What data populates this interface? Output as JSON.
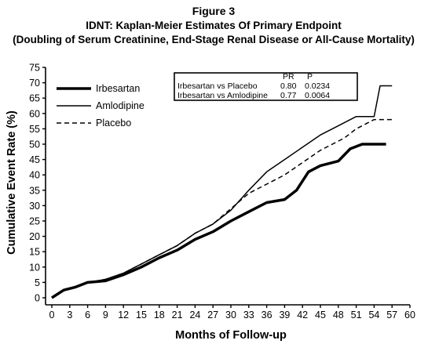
{
  "figure_label": "Figure 3",
  "chart_data": {
    "type": "line",
    "title": "IDNT: Kaplan-Meier Estimates Of Primary Endpoint",
    "subtitle": "(Doubling of Serum Creatinine, End-Stage Renal Disease or All-Cause Mortality)",
    "xlabel": "Months of Follow-up",
    "ylabel": "Cumulative Event Rate (%)",
    "xlim": [
      0,
      60
    ],
    "ylim": [
      0,
      75
    ],
    "x_ticks": [
      0,
      3,
      6,
      9,
      12,
      15,
      18,
      21,
      24,
      27,
      30,
      33,
      36,
      39,
      42,
      45,
      48,
      51,
      54,
      57,
      60
    ],
    "y_ticks": [
      0,
      5,
      10,
      15,
      20,
      25,
      30,
      35,
      40,
      45,
      50,
      55,
      60,
      65,
      70,
      75
    ],
    "x_tick_labels": [
      "0",
      "3",
      "6",
      "9",
      "12",
      "15",
      "18",
      "21",
      "24",
      "27",
      "30",
      "33",
      "36",
      "39",
      "42",
      "45",
      "48",
      "51",
      "54",
      "57",
      "60"
    ],
    "y_tick_labels": [
      "0",
      "5",
      "10",
      "15",
      "20",
      "25",
      "30",
      "35",
      "40",
      "45",
      "50",
      "55",
      "60",
      "65",
      "70",
      "75"
    ],
    "grid": false,
    "legend_position": "top-left",
    "series": [
      {
        "name": "Irbesartan",
        "style": "thick",
        "points": [
          [
            0,
            0
          ],
          [
            2,
            2.5
          ],
          [
            4,
            3.5
          ],
          [
            6,
            5
          ],
          [
            9,
            5.5
          ],
          [
            12,
            7.5
          ],
          [
            15,
            10
          ],
          [
            18,
            13
          ],
          [
            21,
            15.5
          ],
          [
            24,
            19
          ],
          [
            27,
            21.5
          ],
          [
            30,
            25
          ],
          [
            33,
            28
          ],
          [
            36,
            31
          ],
          [
            39,
            32
          ],
          [
            41,
            35
          ],
          [
            43,
            41
          ],
          [
            45,
            43
          ],
          [
            48,
            44.5
          ],
          [
            50,
            48.5
          ],
          [
            52,
            50
          ],
          [
            56,
            50
          ]
        ]
      },
      {
        "name": "Amlodipine",
        "style": "thin",
        "points": [
          [
            0,
            0
          ],
          [
            2,
            2.5
          ],
          [
            4,
            3.5
          ],
          [
            6,
            5
          ],
          [
            9,
            6
          ],
          [
            12,
            8
          ],
          [
            15,
            11
          ],
          [
            18,
            14
          ],
          [
            21,
            17
          ],
          [
            24,
            21
          ],
          [
            27,
            24
          ],
          [
            30,
            28.5
          ],
          [
            33,
            35
          ],
          [
            36,
            41
          ],
          [
            39,
            45
          ],
          [
            42,
            49
          ],
          [
            45,
            53
          ],
          [
            47,
            55
          ],
          [
            49,
            57
          ],
          [
            51,
            59
          ],
          [
            54,
            59
          ],
          [
            55,
            69
          ],
          [
            57,
            69
          ]
        ]
      },
      {
        "name": "Placebo",
        "style": "dashed",
        "points": [
          [
            0,
            0
          ],
          [
            2,
            2.5
          ],
          [
            4,
            3.5
          ],
          [
            6,
            5
          ],
          [
            9,
            6
          ],
          [
            12,
            8
          ],
          [
            15,
            11
          ],
          [
            18,
            14
          ],
          [
            21,
            17
          ],
          [
            24,
            21
          ],
          [
            27,
            24
          ],
          [
            30,
            29
          ],
          [
            33,
            34
          ],
          [
            36,
            37
          ],
          [
            39,
            40
          ],
          [
            42,
            44
          ],
          [
            45,
            48
          ],
          [
            47,
            50
          ],
          [
            49,
            52
          ],
          [
            51,
            55
          ],
          [
            54,
            58
          ],
          [
            57,
            58
          ]
        ]
      }
    ],
    "stats_table": {
      "headers": [
        "",
        "PR",
        "P"
      ],
      "rows": [
        [
          "Irbesartan vs Placebo",
          "0.80",
          "0.0234"
        ],
        [
          "Irbesartan vs Amlodipine",
          "0.77",
          "0.0064"
        ]
      ]
    }
  }
}
